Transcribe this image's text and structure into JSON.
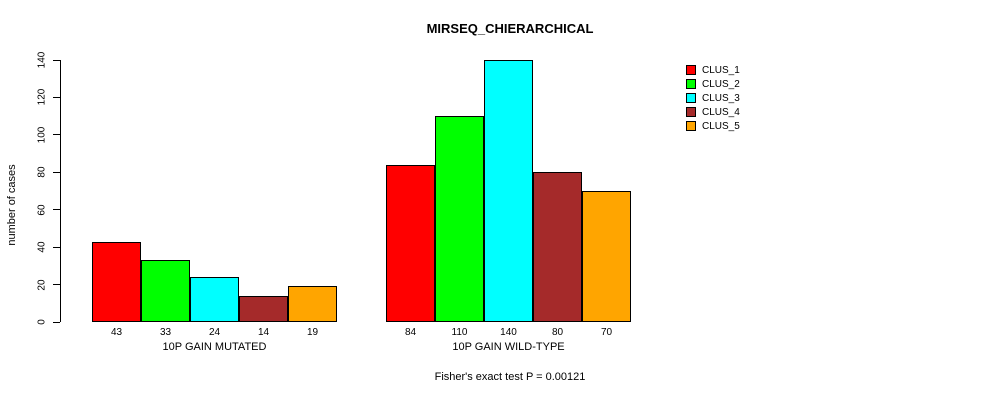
{
  "chart_data": {
    "type": "bar",
    "title": "MIRSEQ_CHIERARCHICAL",
    "ylabel": "number of cases",
    "xlabel": "",
    "ylim": [
      0,
      140
    ],
    "yticks": [
      0,
      20,
      40,
      60,
      80,
      100,
      120,
      140
    ],
    "grid": false,
    "legend_position": "right",
    "series_names": [
      "CLUS_1",
      "CLUS_2",
      "CLUS_3",
      "CLUS_4",
      "CLUS_5"
    ],
    "series_colors": [
      "#ff0000",
      "#00ff00",
      "#00ffff",
      "#a52a2a",
      "#ffa500"
    ],
    "bar_border_color": "#000000",
    "groups": [
      {
        "label": "10P GAIN MUTATED",
        "values": [
          43,
          33,
          24,
          14,
          19
        ]
      },
      {
        "label": "10P GAIN WILD-TYPE",
        "values": [
          84,
          110,
          140,
          80,
          70
        ]
      }
    ],
    "annotation": "Fisher's exact test P = 0.00121"
  }
}
